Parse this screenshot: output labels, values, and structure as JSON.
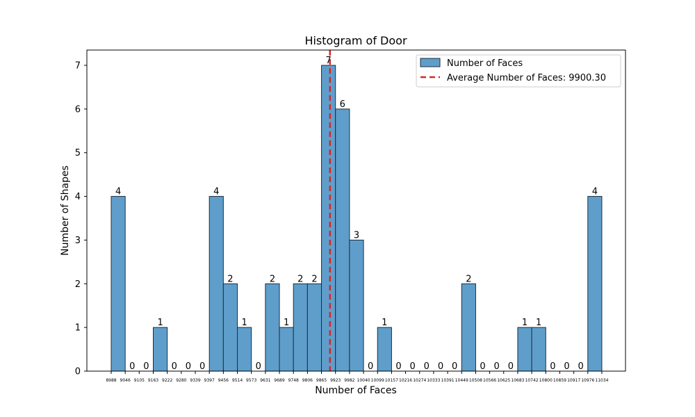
{
  "chart_data": {
    "type": "bar",
    "title": "Histogram of Door",
    "xlabel": "Number of Faces",
    "ylabel": "Number of Shapes",
    "ylim": [
      0,
      7.35
    ],
    "yticks": [
      "0",
      "1",
      "2",
      "3",
      "4",
      "5",
      "6",
      "7"
    ],
    "bin_edges": [
      "8988",
      "9046",
      "9105",
      "9163",
      "9222",
      "9280",
      "9339",
      "9397",
      "9456",
      "9514",
      "9573",
      "9631",
      "9689",
      "9748",
      "9806",
      "9865",
      "9923",
      "9982",
      "10040",
      "10099",
      "10157",
      "10216",
      "10274",
      "10333",
      "10391",
      "10449",
      "10508",
      "10566",
      "10625",
      "10683",
      "10742",
      "10800",
      "10859",
      "10917",
      "10976",
      "11034"
    ],
    "values": [
      4,
      0,
      0,
      1,
      0,
      0,
      0,
      4,
      2,
      1,
      0,
      2,
      1,
      2,
      2,
      7,
      6,
      3,
      0,
      1,
      0,
      0,
      0,
      0,
      0,
      2,
      0,
      0,
      0,
      1,
      1,
      0,
      0,
      0,
      4
    ],
    "bar_color": "#5f9ecb",
    "bar_edge_color": "#1f2d3a",
    "average": 9900.3,
    "average_color": "#d62728",
    "legend": {
      "position": "top-right",
      "entries": [
        "Number of Faces",
        "Average Number of Faces: 9900.30"
      ]
    },
    "grid": false
  }
}
